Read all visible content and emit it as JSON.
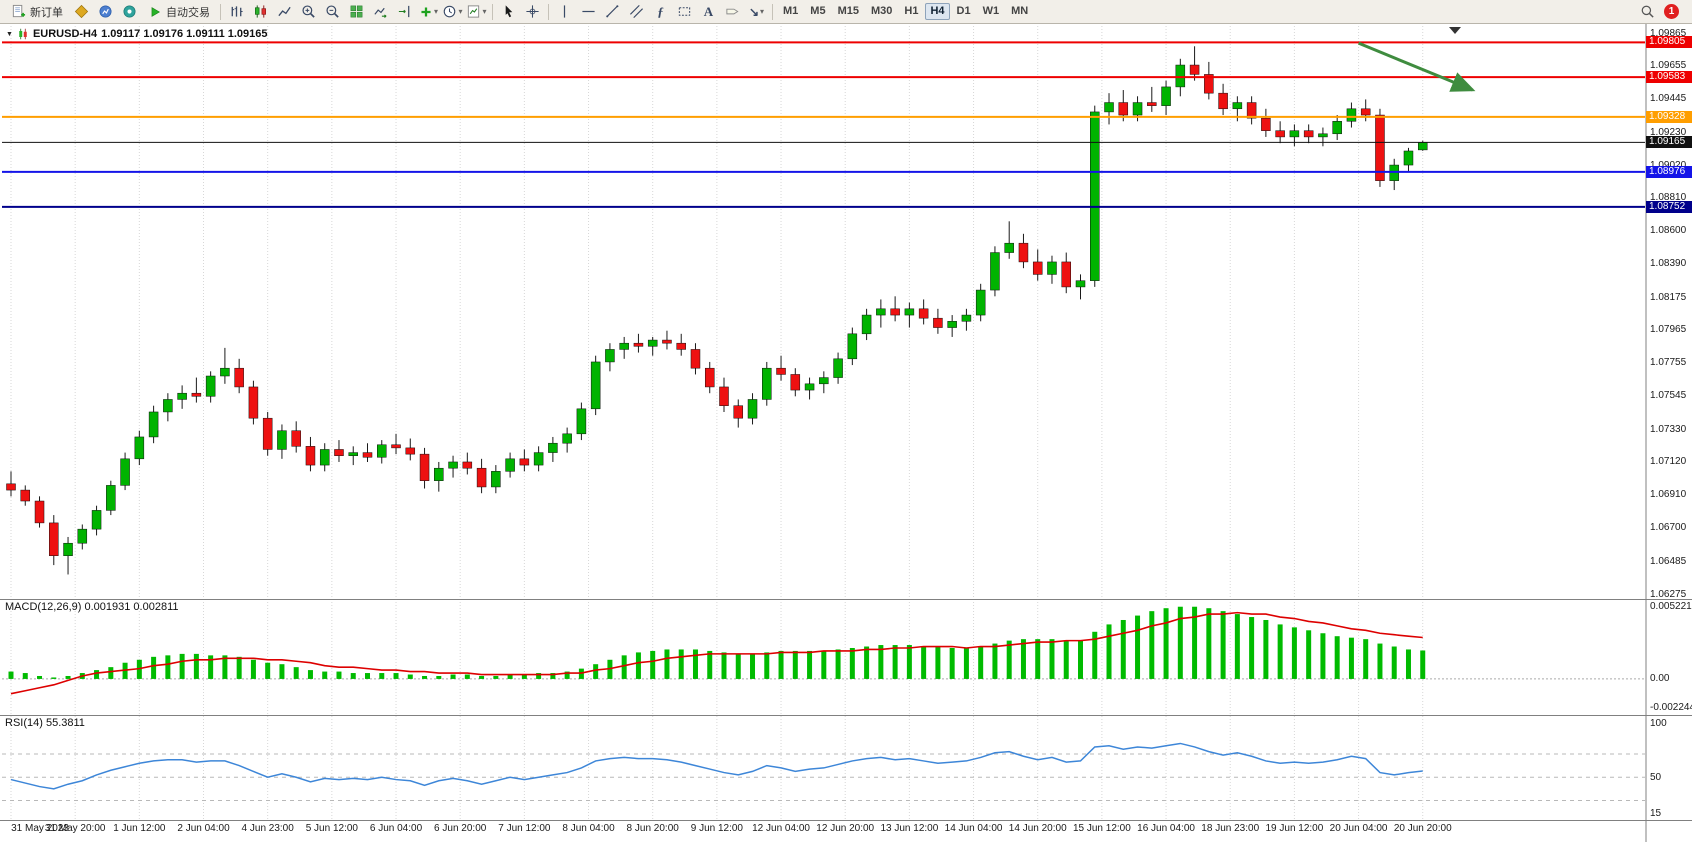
{
  "toolbar": {
    "new_order_label": "新订单",
    "auto_trading_label": "自动交易",
    "timeframes": [
      "M1",
      "M5",
      "M15",
      "M30",
      "H1",
      "H4",
      "D1",
      "W1",
      "MN"
    ],
    "active_timeframe": "H4",
    "notification_count": "1"
  },
  "chart_title": {
    "symbol": "EURUSD-H4",
    "ohlc": "1.09117 1.09176 1.09111 1.09165"
  },
  "indicator_labels": {
    "macd": "MACD(12,26,9)",
    "macd_values": "0.001931 0.002811",
    "rsi": "RSI(14)",
    "rsi_value": "55.3811"
  },
  "chart_data": {
    "type": "candlestick",
    "symbol": "EURUSD",
    "timeframe": "H4",
    "price_axis": {
      "max": 1.09865,
      "min": 1.06275,
      "ticks": [
        "1.09865",
        "1.09655",
        "1.09445",
        "1.09230",
        "1.09020",
        "1.08810",
        "1.08600",
        "1.08390",
        "1.08175",
        "1.07965",
        "1.07755",
        "1.07545",
        "1.07330",
        "1.07120",
        "1.06910",
        "1.06700",
        "1.06485",
        "1.06275"
      ]
    },
    "time_axis": [
      "31 May 2023",
      "31 May 20:00",
      "1 Jun 12:00",
      "2 Jun 04:00",
      "4 Jun 23:00",
      "5 Jun 12:00",
      "6 Jun 04:00",
      "6 Jun 20:00",
      "7 Jun 12:00",
      "8 Jun 04:00",
      "8 Jun 20:00",
      "9 Jun 12:00",
      "12 Jun 04:00",
      "12 Jun 20:00",
      "13 Jun 12:00",
      "14 Jun 04:00",
      "14 Jun 20:00",
      "15 Jun 12:00",
      "16 Jun 04:00",
      "18 Jun 23:00",
      "19 Jun 12:00",
      "20 Jun 04:00",
      "20 Jun 20:00"
    ],
    "hlines": [
      {
        "price": 1.09805,
        "label": "1.09805",
        "color": "#ee0000",
        "width": 2
      },
      {
        "price": 1.09583,
        "label": "1.09583",
        "color": "#ee0000",
        "width": 2
      },
      {
        "price": 1.09328,
        "label": "1.09328",
        "color": "#ff9e00",
        "width": 2
      },
      {
        "price": 1.09165,
        "label": "1.09165",
        "color": "#111111",
        "width": 1
      },
      {
        "price": 1.08976,
        "label": "1.08976",
        "color": "#1414e8",
        "width": 2
      },
      {
        "price": 1.08752,
        "label": "1.08752",
        "color": "#00008b",
        "width": 2
      }
    ],
    "up_color": "#00b300",
    "down_color": "#ee1111",
    "candles": [
      [
        1.0698,
        1.0706,
        1.069,
        1.0694
      ],
      [
        1.0694,
        1.0697,
        1.0684,
        1.0687
      ],
      [
        1.0687,
        1.069,
        1.067,
        1.0673
      ],
      [
        1.0673,
        1.0678,
        1.0646,
        1.0652
      ],
      [
        1.0652,
        1.0664,
        1.064,
        1.066
      ],
      [
        1.066,
        1.0672,
        1.0656,
        1.0669
      ],
      [
        1.0669,
        1.0684,
        1.0665,
        1.0681
      ],
      [
        1.0681,
        1.07,
        1.0678,
        1.0697
      ],
      [
        1.0697,
        1.0718,
        1.0694,
        1.0714
      ],
      [
        1.0714,
        1.0732,
        1.071,
        1.0728
      ],
      [
        1.0728,
        1.0748,
        1.0724,
        1.0744
      ],
      [
        1.0744,
        1.0756,
        1.0738,
        1.0752
      ],
      [
        1.0752,
        1.0761,
        1.0746,
        1.0756
      ],
      [
        1.0756,
        1.0766,
        1.075,
        1.0754
      ],
      [
        1.0754,
        1.077,
        1.075,
        1.0767
      ],
      [
        1.0767,
        1.0785,
        1.0762,
        1.0772
      ],
      [
        1.0772,
        1.0778,
        1.0756,
        1.076
      ],
      [
        1.076,
        1.0764,
        1.0736,
        1.074
      ],
      [
        1.074,
        1.0744,
        1.0716,
        1.072
      ],
      [
        1.072,
        1.0736,
        1.0714,
        1.0732
      ],
      [
        1.0732,
        1.0738,
        1.0718,
        1.0722
      ],
      [
        1.0722,
        1.0728,
        1.0706,
        1.071
      ],
      [
        1.071,
        1.0724,
        1.0706,
        1.072
      ],
      [
        1.072,
        1.0726,
        1.0712,
        1.0716
      ],
      [
        1.0716,
        1.0722,
        1.071,
        1.0718
      ],
      [
        1.0718,
        1.0724,
        1.0712,
        1.0715
      ],
      [
        1.0715,
        1.0726,
        1.0711,
        1.0723
      ],
      [
        1.0723,
        1.073,
        1.0717,
        1.0721
      ],
      [
        1.0721,
        1.0727,
        1.0713,
        1.0717
      ],
      [
        1.0717,
        1.0721,
        1.0695,
        1.07
      ],
      [
        1.07,
        1.0712,
        1.0693,
        1.0708
      ],
      [
        1.0708,
        1.0716,
        1.0702,
        1.0712
      ],
      [
        1.0712,
        1.0718,
        1.0704,
        1.0708
      ],
      [
        1.0708,
        1.0714,
        1.0692,
        1.0696
      ],
      [
        1.0696,
        1.071,
        1.0692,
        1.0706
      ],
      [
        1.0706,
        1.0718,
        1.0702,
        1.0714
      ],
      [
        1.0714,
        1.072,
        1.0706,
        1.071
      ],
      [
        1.071,
        1.0722,
        1.0706,
        1.0718
      ],
      [
        1.0718,
        1.0728,
        1.0712,
        1.0724
      ],
      [
        1.0724,
        1.0734,
        1.0718,
        1.073
      ],
      [
        1.073,
        1.075,
        1.0726,
        1.0746
      ],
      [
        1.0746,
        1.078,
        1.0742,
        1.0776
      ],
      [
        1.0776,
        1.0788,
        1.077,
        1.0784
      ],
      [
        1.0784,
        1.0792,
        1.0778,
        1.0788
      ],
      [
        1.0788,
        1.0794,
        1.0782,
        1.0786
      ],
      [
        1.0786,
        1.0792,
        1.078,
        1.079
      ],
      [
        1.079,
        1.0796,
        1.0784,
        1.0788
      ],
      [
        1.0788,
        1.0794,
        1.078,
        1.0784
      ],
      [
        1.0784,
        1.0788,
        1.0768,
        1.0772
      ],
      [
        1.0772,
        1.0776,
        1.0756,
        1.076
      ],
      [
        1.076,
        1.0766,
        1.0744,
        1.0748
      ],
      [
        1.0748,
        1.0752,
        1.0734,
        1.074
      ],
      [
        1.074,
        1.0756,
        1.0736,
        1.0752
      ],
      [
        1.0752,
        1.0776,
        1.0748,
        1.0772
      ],
      [
        1.0772,
        1.078,
        1.0764,
        1.0768
      ],
      [
        1.0768,
        1.0772,
        1.0754,
        1.0758
      ],
      [
        1.0758,
        1.0766,
        1.0752,
        1.0762
      ],
      [
        1.0762,
        1.077,
        1.0756,
        1.0766
      ],
      [
        1.0766,
        1.0782,
        1.0762,
        1.0778
      ],
      [
        1.0778,
        1.0798,
        1.0774,
        1.0794
      ],
      [
        1.0794,
        1.081,
        1.079,
        1.0806
      ],
      [
        1.0806,
        1.0816,
        1.0798,
        1.081
      ],
      [
        1.081,
        1.0818,
        1.0802,
        1.0806
      ],
      [
        1.0806,
        1.0814,
        1.0798,
        1.081
      ],
      [
        1.081,
        1.0816,
        1.08,
        1.0804
      ],
      [
        1.0804,
        1.081,
        1.0794,
        1.0798
      ],
      [
        1.0798,
        1.0806,
        1.0792,
        1.0802
      ],
      [
        1.0802,
        1.081,
        1.0796,
        1.0806
      ],
      [
        1.0806,
        1.0826,
        1.0802,
        1.0822
      ],
      [
        1.0822,
        1.085,
        1.0818,
        1.0846
      ],
      [
        1.0846,
        1.0866,
        1.0842,
        1.0852
      ],
      [
        1.0852,
        1.0858,
        1.0836,
        1.084
      ],
      [
        1.084,
        1.0848,
        1.0828,
        1.0832
      ],
      [
        1.0832,
        1.0844,
        1.0826,
        1.084
      ],
      [
        1.084,
        1.0846,
        1.082,
        1.0824
      ],
      [
        1.0824,
        1.0832,
        1.0816,
        1.0828
      ],
      [
        1.0828,
        1.094,
        1.0824,
        1.0936
      ],
      [
        1.0936,
        1.0948,
        1.0928,
        1.0942
      ],
      [
        1.0942,
        1.095,
        1.093,
        1.0934
      ],
      [
        1.0934,
        1.0946,
        1.093,
        1.0942
      ],
      [
        1.0942,
        1.0952,
        1.0936,
        1.094
      ],
      [
        1.094,
        1.0956,
        1.0934,
        1.0952
      ],
      [
        1.0952,
        1.097,
        1.0946,
        1.0966
      ],
      [
        1.0966,
        1.0978,
        1.0956,
        1.096
      ],
      [
        1.096,
        1.0968,
        1.0944,
        1.0948
      ],
      [
        1.0948,
        1.0954,
        1.0934,
        1.0938
      ],
      [
        1.0938,
        1.0946,
        1.093,
        1.0942
      ],
      [
        1.0942,
        1.0946,
        1.0928,
        1.0932
      ],
      [
        1.0932,
        1.0938,
        1.092,
        1.0924
      ],
      [
        1.0924,
        1.093,
        1.0916,
        1.092
      ],
      [
        1.092,
        1.0928,
        1.0914,
        1.0924
      ],
      [
        1.0924,
        1.0928,
        1.0916,
        1.092
      ],
      [
        1.092,
        1.0926,
        1.0914,
        1.0922
      ],
      [
        1.0922,
        1.0934,
        1.0918,
        1.093
      ],
      [
        1.093,
        1.0942,
        1.0926,
        1.0938
      ],
      [
        1.0938,
        1.0944,
        1.093,
        1.0934
      ],
      [
        1.0934,
        1.0938,
        1.0888,
        1.0892
      ],
      [
        1.0892,
        1.0906,
        1.0886,
        1.0902
      ],
      [
        1.0902,
        1.0913,
        1.0898,
        1.0911
      ],
      [
        1.09117,
        1.09176,
        1.09111,
        1.09165
      ]
    ],
    "macd": {
      "scale_max": 0.005221,
      "scale_min": -0.002244,
      "scale_labels": [
        "0.005221",
        "0.00",
        "-0.002244"
      ],
      "histogram_color": "#00bb00",
      "signal_color": "#dd0000",
      "histogram": [
        0.0005,
        0.0004,
        0.0002,
        0.0001,
        0.0002,
        0.0004,
        0.0006,
        0.0008,
        0.0011,
        0.0013,
        0.0015,
        0.0016,
        0.0017,
        0.0017,
        0.0016,
        0.0016,
        0.0015,
        0.0013,
        0.0011,
        0.001,
        0.0008,
        0.0006,
        0.0005,
        0.0005,
        0.0004,
        0.0004,
        0.0004,
        0.0004,
        0.0003,
        0.0002,
        0.0002,
        0.0003,
        0.0003,
        0.0002,
        0.0002,
        0.0003,
        0.0003,
        0.0004,
        0.0004,
        0.0005,
        0.0007,
        0.001,
        0.0013,
        0.0016,
        0.0018,
        0.0019,
        0.002,
        0.002,
        0.002,
        0.0019,
        0.0018,
        0.0017,
        0.0017,
        0.0018,
        0.0019,
        0.0019,
        0.0019,
        0.0019,
        0.002,
        0.0021,
        0.0022,
        0.0023,
        0.0023,
        0.0023,
        0.0022,
        0.0022,
        0.0021,
        0.0021,
        0.0022,
        0.0024,
        0.0026,
        0.0027,
        0.0027,
        0.0027,
        0.0026,
        0.0026,
        0.0032,
        0.0037,
        0.004,
        0.0043,
        0.0046,
        0.0048,
        0.0049,
        0.0049,
        0.0048,
        0.0046,
        0.0044,
        0.0042,
        0.004,
        0.0037,
        0.0035,
        0.0033,
        0.0031,
        0.0029,
        0.0028,
        0.0027,
        0.0024,
        0.0022,
        0.002,
        0.001931
      ],
      "signal": [
        -0.001,
        -0.0008,
        -0.0006,
        -0.0004,
        -0.0001,
        0.0002,
        0.0004,
        0.0005,
        0.0006,
        0.0007,
        0.0009,
        0.001,
        0.0012,
        0.0013,
        0.0013,
        0.0014,
        0.0014,
        0.0014,
        0.0013,
        0.0013,
        0.0012,
        0.0011,
        0.0009,
        0.0008,
        0.0008,
        0.0007,
        0.0006,
        0.0006,
        0.0005,
        0.0005,
        0.0004,
        0.0004,
        0.0004,
        0.0003,
        0.0003,
        0.0003,
        0.0003,
        0.0003,
        0.0003,
        0.0004,
        0.0004,
        0.0006,
        0.0007,
        0.0009,
        0.0011,
        0.0012,
        0.0014,
        0.0015,
        0.0016,
        0.0017,
        0.0017,
        0.0017,
        0.0017,
        0.0017,
        0.0018,
        0.0018,
        0.0018,
        0.0019,
        0.0019,
        0.0019,
        0.002,
        0.002,
        0.0021,
        0.0021,
        0.0022,
        0.0022,
        0.0022,
        0.0021,
        0.0022,
        0.0022,
        0.0023,
        0.0024,
        0.0025,
        0.0025,
        0.0026,
        0.0026,
        0.0027,
        0.0029,
        0.0031,
        0.0033,
        0.0036,
        0.0038,
        0.0041,
        0.0042,
        0.0044,
        0.0044,
        0.0045,
        0.0044,
        0.0044,
        0.0042,
        0.0041,
        0.0039,
        0.0038,
        0.0036,
        0.0034,
        0.0033,
        0.0031,
        0.003,
        0.0029,
        0.002811
      ]
    },
    "rsi": {
      "scale_max": 100,
      "scale_min": 15,
      "scale_labels": [
        "100",
        "50",
        "15"
      ],
      "levels": [
        70,
        50,
        30
      ],
      "color": "#3d86d8",
      "values": [
        48,
        45,
        42,
        40,
        44,
        47,
        52,
        56,
        59,
        62,
        64,
        65,
        65,
        63,
        64,
        64,
        60,
        55,
        50,
        53,
        50,
        46,
        49,
        48,
        49,
        48,
        50,
        48,
        47,
        43,
        47,
        49,
        47,
        44,
        47,
        50,
        48,
        50,
        52,
        54,
        58,
        64,
        66,
        67,
        66,
        66,
        65,
        63,
        60,
        57,
        54,
        52,
        55,
        60,
        58,
        55,
        57,
        58,
        61,
        64,
        66,
        67,
        65,
        66,
        64,
        62,
        63,
        64,
        67,
        71,
        72,
        68,
        65,
        67,
        63,
        64,
        76,
        77,
        74,
        76,
        75,
        77,
        79,
        76,
        72,
        69,
        71,
        68,
        64,
        62,
        63,
        62,
        63,
        65,
        68,
        66,
        54,
        52,
        54,
        55.38
      ]
    },
    "annotation_arrow": {
      "from_index": 94.5,
      "from_price": 1.098,
      "to_index": 102.5,
      "to_price": 1.095,
      "color": "#3f8c3f"
    }
  }
}
